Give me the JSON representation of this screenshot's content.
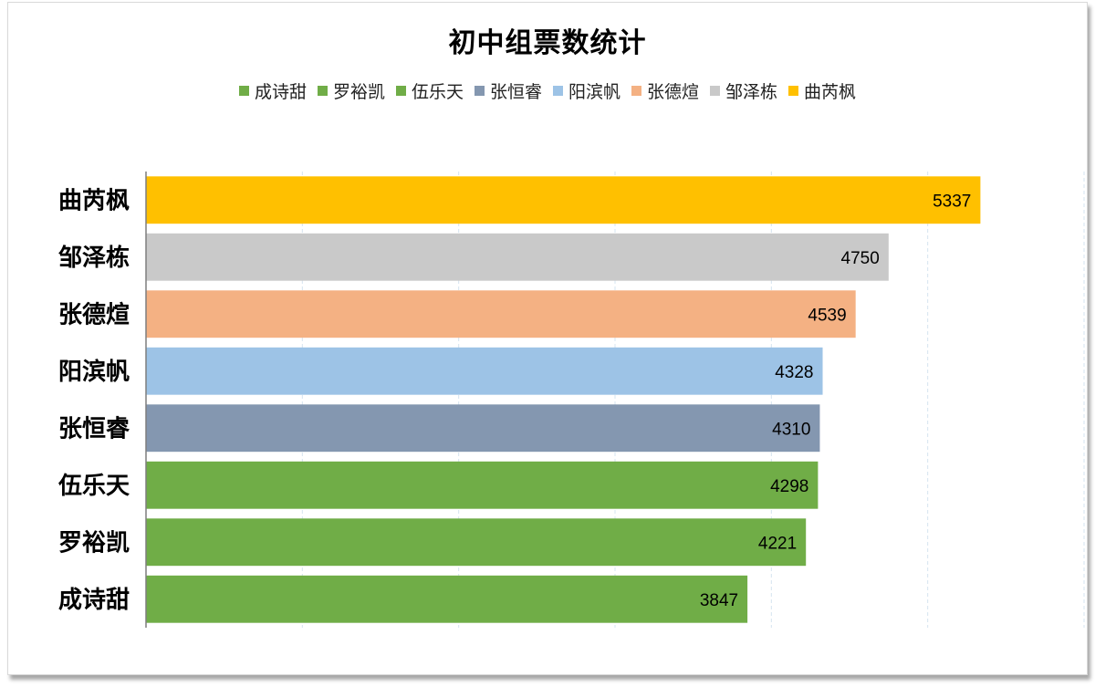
{
  "chart_data": {
    "type": "bar",
    "orientation": "horizontal",
    "title": "初中组票数统计",
    "categories": [
      "成诗甜",
      "罗裕凯",
      "伍乐天",
      "张恒睿",
      "阳滨帆",
      "张德煊",
      "邹泽栋",
      "曲芮枫"
    ],
    "values": [
      3847,
      4221,
      4298,
      4310,
      4328,
      4539,
      4750,
      5337
    ],
    "colors": [
      "#70ad47",
      "#70ad47",
      "#70ad47",
      "#8497b0",
      "#9dc3e6",
      "#f4b183",
      "#c9c9c9",
      "#ffc000"
    ],
    "legend": {
      "position": "top",
      "entries": [
        {
          "label": "成诗甜",
          "color": "#70ad47"
        },
        {
          "label": "罗裕凯",
          "color": "#70ad47"
        },
        {
          "label": "伍乐天",
          "color": "#70ad47"
        },
        {
          "label": "张恒睿",
          "color": "#8497b0"
        },
        {
          "label": "阳滨帆",
          "color": "#9dc3e6"
        },
        {
          "label": "张德煊",
          "color": "#f4b183"
        },
        {
          "label": "邹泽栋",
          "color": "#c9c9c9"
        },
        {
          "label": "曲芮枫",
          "color": "#ffc000"
        }
      ]
    },
    "xlim": [
      0,
      6000
    ],
    "grid": true,
    "data_labels": true,
    "xlabel": "",
    "ylabel": ""
  }
}
